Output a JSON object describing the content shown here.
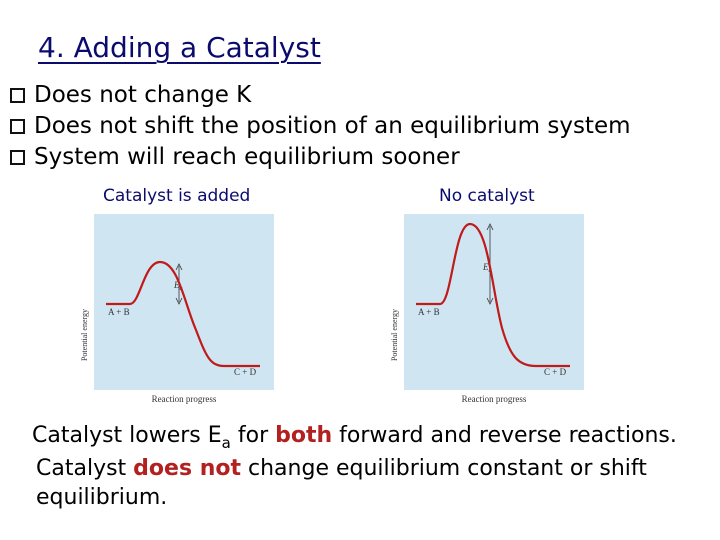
{
  "title": "4. Adding a Catalyst",
  "bullets": [
    "Does not change K",
    "Does not shift the position of an equilibrium system",
    "System will reach equilibrium sooner"
  ],
  "panels": [
    {
      "caption": "Catalyst is added",
      "y_axis_label": "Potential energy",
      "x_axis_label": "Reaction progress",
      "reactants_label": "A + B",
      "products_label": "C + D",
      "ea_label": "E",
      "ea_subscript": "a"
    },
    {
      "caption": "No catalyst",
      "y_axis_label": "Potential energy",
      "x_axis_label": "Reaction progress",
      "reactants_label": "A + B",
      "products_label": "C + D",
      "ea_label": "E",
      "ea_subscript": "a"
    }
  ],
  "conclusion": {
    "line1_a": "Catalyst lowers E",
    "line1_sub": "a",
    "line1_b": " for ",
    "line1_emph": "both",
    "line1_c": " forward and reverse reactions.",
    "line2_a": "Catalyst ",
    "line2_emph": "does not",
    "line2_b": " change equilibrium constant or shift",
    "line3": "equilibrium."
  },
  "colors": {
    "panel_bg": "#cfe6f2",
    "curve": "#c01a1a",
    "title": "#0b0b6e",
    "emphasis": "#b22020"
  }
}
